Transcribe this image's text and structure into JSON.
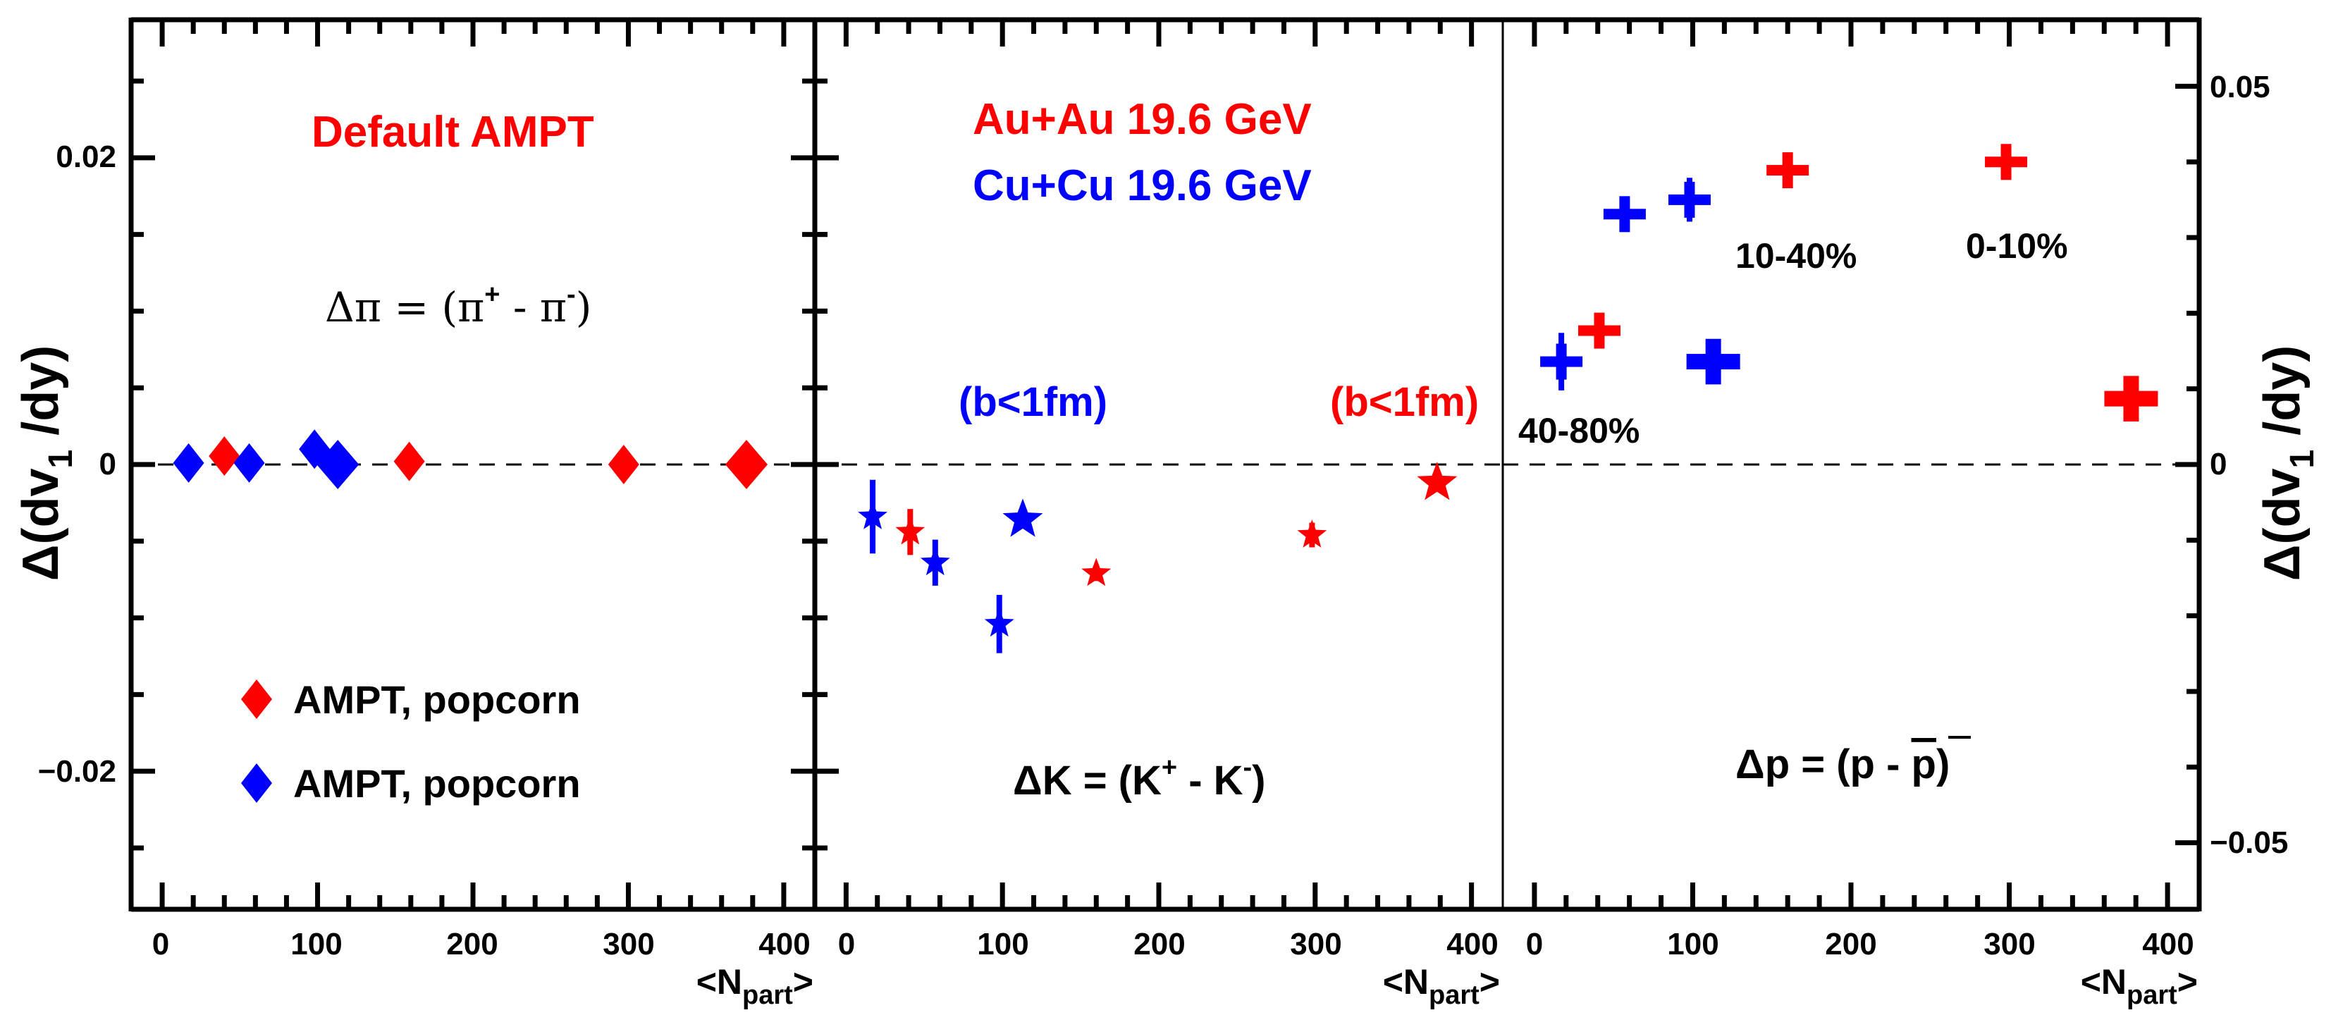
{
  "colors": {
    "red": "#ff0000",
    "blue": "#0000ff",
    "axis": "#000000"
  },
  "axes": {
    "left_ylabel": {
      "main": "Δ(dv",
      "sub": "1",
      "end": " /dy)"
    },
    "right_ylabel": {
      "main": "Δ(dv",
      "sub": "1",
      "end": " /dy)"
    },
    "xlabel": {
      "main": "<N",
      "sub": "part",
      "end": ">"
    },
    "x_ticks": [
      "0",
      "100",
      "200",
      "300",
      "400"
    ],
    "left_y_ticks": [
      "0.02",
      "0",
      "−0.02"
    ],
    "right_y_ticks": [
      "0.05",
      "0",
      "−0.05"
    ]
  },
  "annotations": {
    "default_ampt": "Default AMPT",
    "auau": "Au+Au 19.6 GeV",
    "cucu": "Cu+Cu 19.6 GeV",
    "b_blue": "(b<1fm)",
    "b_red": "(b<1fm)",
    "pion_formula": {
      "a": "Δπ = (π",
      "b": "+",
      "c": " -  π",
      "d": "-",
      "e": ")"
    },
    "kaon_formula": {
      "a": "ΔK = (K",
      "b": "+",
      "c": " - K",
      "d": "-",
      "e": ")"
    },
    "proton_formula": {
      "a": "Δp = (p -  ",
      "b": "p",
      "c": ")"
    },
    "cent_40_80": "40-80%",
    "cent_10_40": "10-40%",
    "cent_0_10": "0-10%"
  },
  "legend": [
    {
      "label": "AMPT, popcorn",
      "color": "#ff0000",
      "marker": "diamond"
    },
    {
      "label": "AMPT, popcorn",
      "color": "#0000ff",
      "marker": "diamond"
    }
  ],
  "chart_data": [
    {
      "type": "scatter",
      "panel": "pion",
      "marker": "diamond",
      "xlabel": "<Npart>",
      "ylabel": "Δ(dv1/dy)",
      "xlim": [
        -20,
        420
      ],
      "ylim": [
        -0.029,
        0.029
      ],
      "yaxis": "left",
      "series": [
        {
          "name": "Au+Au 19.6 GeV",
          "color": "#ff0000",
          "points": [
            {
              "x": 40,
              "y": 0.00055,
              "yerr": 0,
              "big": false
            },
            {
              "x": 159,
              "y": 0.0002,
              "yerr": 0,
              "big": false
            },
            {
              "x": 297,
              "y": 0.0,
              "yerr": 0,
              "big": false
            },
            {
              "x": 376,
              "y": 0.0,
              "yerr": 0,
              "big": true
            }
          ]
        },
        {
          "name": "Cu+Cu 19.6 GeV",
          "color": "#0000ff",
          "points": [
            {
              "x": 17,
              "y": 0.0001,
              "yerr": 0,
              "big": false
            },
            {
              "x": 56,
              "y": 0.0001,
              "yerr": 0,
              "big": false
            },
            {
              "x": 98,
              "y": 0.001,
              "yerr": 0,
              "big": false
            },
            {
              "x": 113,
              "y": 0.0,
              "yerr": 0,
              "big": true
            }
          ]
        }
      ]
    },
    {
      "type": "scatter",
      "panel": "kaon",
      "marker": "star",
      "xlabel": "<Npart>",
      "ylabel": "Δ(dv1/dy)",
      "xlim": [
        -20,
        420
      ],
      "ylim": [
        -0.029,
        0.029
      ],
      "yaxis": "left",
      "series": [
        {
          "name": "Au+Au 19.6 GeV",
          "color": "#ff0000",
          "points": [
            {
              "x": 41,
              "y": -0.0044,
              "yerr": 0.0015,
              "big": false
            },
            {
              "x": 160,
              "y": -0.0071,
              "yerr": 0.0005,
              "big": false
            },
            {
              "x": 298,
              "y": -0.0046,
              "yerr": 0.0008,
              "big": false
            },
            {
              "x": 378,
              "y": -0.0012,
              "yerr": 0,
              "big": true
            }
          ]
        },
        {
          "name": "Cu+Cu 19.6 GeV",
          "color": "#0000ff",
          "points": [
            {
              "x": 17,
              "y": -0.0034,
              "yerr": 0.0024,
              "big": false
            },
            {
              "x": 57,
              "y": -0.0064,
              "yerr": 0.0015,
              "big": false
            },
            {
              "x": 98,
              "y": -0.0104,
              "yerr": 0.0019,
              "big": false
            },
            {
              "x": 113,
              "y": -0.0036,
              "yerr": 0,
              "big": true
            }
          ]
        }
      ]
    },
    {
      "type": "scatter",
      "panel": "proton",
      "marker": "cross",
      "xlabel": "<Npart>",
      "ylabel": "Δ(dv1/dy)",
      "xlim": [
        -20,
        420
      ],
      "ylim": [
        -0.0588,
        0.0588
      ],
      "yaxis": "right",
      "series": [
        {
          "name": "Au+Au 19.6 GeV",
          "color": "#ff0000",
          "points": [
            {
              "x": 41,
              "y": 0.0177,
              "yerr": 0.0,
              "big": false
            },
            {
              "x": 160,
              "y": 0.0389,
              "yerr": 0.0,
              "big": false
            },
            {
              "x": 298,
              "y": 0.04,
              "yerr": 0.0,
              "big": false
            },
            {
              "x": 377,
              "y": 0.0087,
              "yerr": 0,
              "big": true
            }
          ]
        },
        {
          "name": "Cu+Cu 19.6 GeV",
          "color": "#0000ff",
          "points": [
            {
              "x": 17,
              "y": 0.0136,
              "yerr": 0.0038,
              "big": false
            },
            {
              "x": 57,
              "y": 0.0331,
              "yerr": 0.0,
              "big": false
            },
            {
              "x": 98,
              "y": 0.035,
              "yerr": 0.0029,
              "big": false
            },
            {
              "x": 113,
              "y": 0.0136,
              "yerr": 0,
              "big": true
            }
          ]
        }
      ]
    }
  ]
}
